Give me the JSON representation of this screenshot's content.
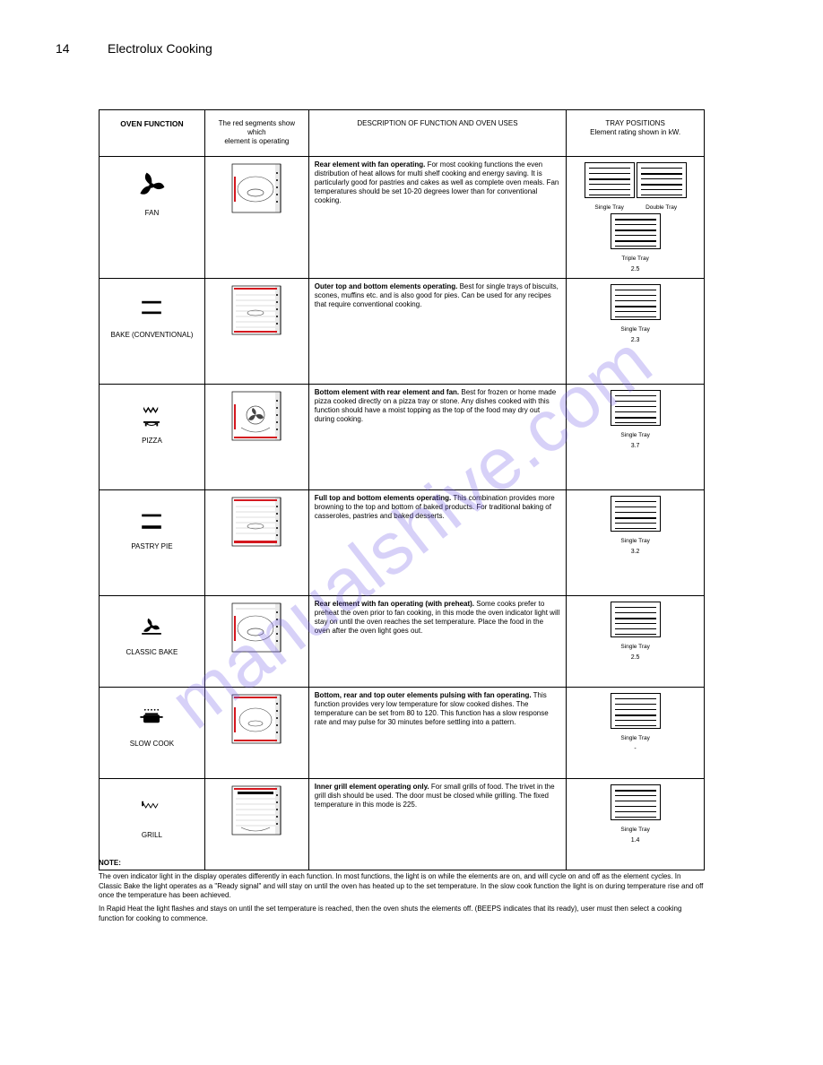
{
  "page": {
    "number": "14",
    "title": "Electrolux Cooking"
  },
  "watermark": "manualshive.com",
  "table": {
    "headers": {
      "c1": "OVEN FUNCTION",
      "c2_line1": "The red segments show which",
      "c2_line2": "element is operating",
      "c3": "DESCRIPTION OF FUNCTION AND OVEN USES",
      "c4_line1": "TRAY POSITIONS",
      "c4_line2": "Element rating shown in kW."
    },
    "rows": [
      {
        "mode": "FAN",
        "icon": "fan",
        "oven": "fan-element",
        "desc_bold": "Rear element with fan operating.",
        "desc": " For most cooking functions the even distribution of heat allows for multi shelf cooking and energy saving. It is particularly good for pastries and cakes as well as complete oven meals. Fan temperatures should be set 10-20 degrees lower than for conventional cooking.",
        "racks": [
          {
            "label": "Single Tray",
            "trays": [
              17
            ]
          },
          {
            "label": "Double Tray",
            "trays": [
              11,
              23
            ]
          },
          {
            "label": "Triple Tray",
            "trays": [
              5,
              17,
              29
            ]
          }
        ],
        "rating": "2.5"
      },
      {
        "mode": "BAKE (CONVENTIONAL)",
        "icon": "bake",
        "oven": "top-bottom",
        "desc_bold": "Outer top and bottom elements operating.",
        "desc": " Best for single trays of biscuits, scones, muffins etc. and is also good for pies. Can be used for any recipes that require conventional cooking.",
        "racks": [
          {
            "label": "Single Tray",
            "trays": [
              23
            ]
          }
        ],
        "rating": "2.3"
      },
      {
        "mode": "PIZZA",
        "icon": "pizza",
        "oven": "fan-bottom",
        "desc_bold": "Bottom element with rear element and fan.",
        "desc": " Best for frozen or home made pizza cooked directly on a pizza tray or stone. Any dishes cooked with this function should have a moist topping as the top of the food may dry out during cooking.",
        "racks": [
          {
            "label": "Single Tray",
            "trays": [
              29
            ]
          }
        ],
        "rating": "3.7"
      },
      {
        "mode": "PASTRY PIE",
        "icon": "pastry",
        "oven": "bottom-top-line",
        "desc_bold": "Full top and bottom elements operating.",
        "desc": " This combination provides more browning to the top and bottom of baked products. For traditional baking of casseroles, pastries and baked desserts.",
        "racks": [
          {
            "label": "Single Tray",
            "trays": [
              23
            ]
          }
        ],
        "rating": "3.2"
      },
      {
        "mode": "CLASSIC BAKE",
        "icon": "classic",
        "oven": "fan-element-line",
        "desc_bold": "Rear element with fan operating (with preheat).",
        "desc": " Some cooks prefer to preheat the oven prior to fan cooking, in this mode the oven indicator light will stay on until the oven reaches the set temperature. Place the food in the oven after the oven light goes out.",
        "racks": [
          {
            "label": "Single Tray",
            "trays": [
              17
            ]
          }
        ],
        "rating": "2.5"
      },
      {
        "mode": "SLOW COOK",
        "icon": "slow",
        "oven": "fan-all",
        "desc_bold": "Bottom, rear and top outer elements pulsing with fan operating.",
        "desc": " This function provides very low temperature for slow cooked dishes. The temperature can be set from 80 to 120. This function has a slow response rate and may pulse for 30 minutes before settling into a pattern.",
        "racks": [
          {
            "label": "Single Tray",
            "trays": [
              23
            ]
          }
        ],
        "rating": "-"
      },
      {
        "mode": "GRILL",
        "icon": "grill",
        "oven": "grill-top",
        "desc_bold": "Inner grill element operating only.",
        "desc": " For small grills of food. The trivet in the grill dish should be used. The door must be closed while grilling. The fixed temperature in this mode is 225.",
        "racks": [
          {
            "label": "Single Tray",
            "trays": [
              5
            ]
          }
        ],
        "rating": "1.4"
      }
    ]
  },
  "note": {
    "heading": "NOTE:",
    "p1": "The oven indicator light in the display operates differently in each function. In most functions, the light is on while the elements are on, and will cycle on and off as the element cycles. In Classic Bake the light operates as a \"Ready signal\" and will stay on until the oven has heated up to the set temperature. In the slow cook function the light is on during temperature rise and off once the temperature has been achieved.",
    "p2": "In Rapid Heat the light flashes and stays on until the set temperature is reached, then the oven shuts the elements off. (BEEPS indicates that its ready), user must then select a cooking function for cooking to commence."
  },
  "colors": {
    "element": "#d4181f",
    "watermark": "rgba(110,90,230,0.28)"
  }
}
